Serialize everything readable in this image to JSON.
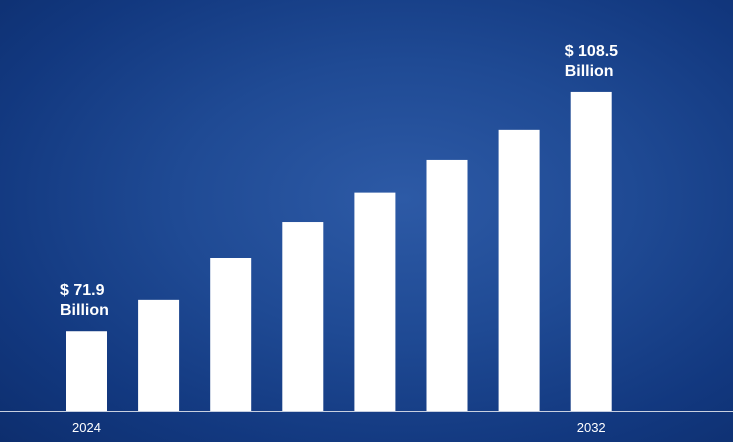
{
  "chart_data": {
    "type": "bar",
    "categories": [
      "2024",
      null,
      null,
      null,
      null,
      null,
      null,
      "2032"
    ],
    "values": [
      71.9,
      76.7,
      83.1,
      88.6,
      93.1,
      98.1,
      102.7,
      108.5
    ],
    "value_labels": [
      "$ 71.9 Billion",
      null,
      null,
      null,
      null,
      null,
      null,
      "$ 108.5 Billion"
    ],
    "color": "#ffffff",
    "ylim": [
      59.7,
      119.5
    ]
  }
}
